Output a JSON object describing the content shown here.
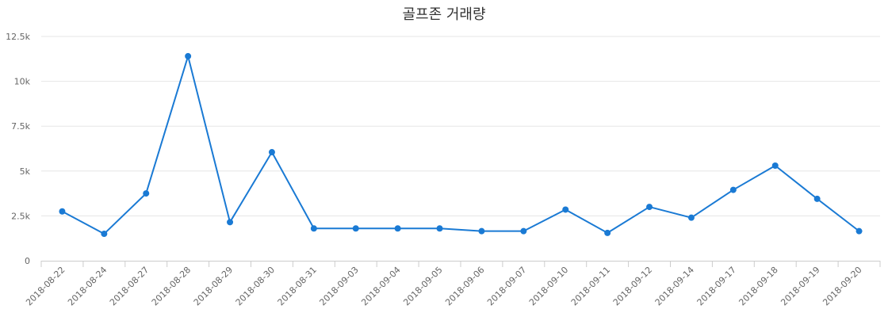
{
  "chart_data": {
    "type": "line",
    "title": "골프존 거래량",
    "xlabel": "",
    "ylabel": "",
    "ylim": [
      0,
      12500
    ],
    "yticks": [
      "0",
      "2.5k",
      "5k",
      "7.5k",
      "10k",
      "12.5k"
    ],
    "ytick_values": [
      0,
      2500,
      5000,
      7500,
      10000,
      12500
    ],
    "categories": [
      "2018-08-22",
      "2018-08-24",
      "2018-08-27",
      "2018-08-28",
      "2018-08-29",
      "2018-08-30",
      "2018-08-31",
      "2018-09-03",
      "2018-09-04",
      "2018-09-05",
      "2018-09-06",
      "2018-09-07",
      "2018-09-10",
      "2018-09-11",
      "2018-09-12",
      "2018-09-14",
      "2018-09-17",
      "2018-09-18",
      "2018-09-19",
      "2018-09-20"
    ],
    "series": [
      {
        "values": [
          2750,
          1500,
          3750,
          11400,
          2150,
          6050,
          1800,
          1800,
          1800,
          1800,
          1650,
          1650,
          2850,
          1550,
          3000,
          2400,
          3950,
          5300,
          3450,
          1650
        ]
      }
    ],
    "grid": true,
    "legend": "none",
    "colors": {
      "line": "#1a7ad4",
      "marker": "#1a7ad4"
    }
  }
}
